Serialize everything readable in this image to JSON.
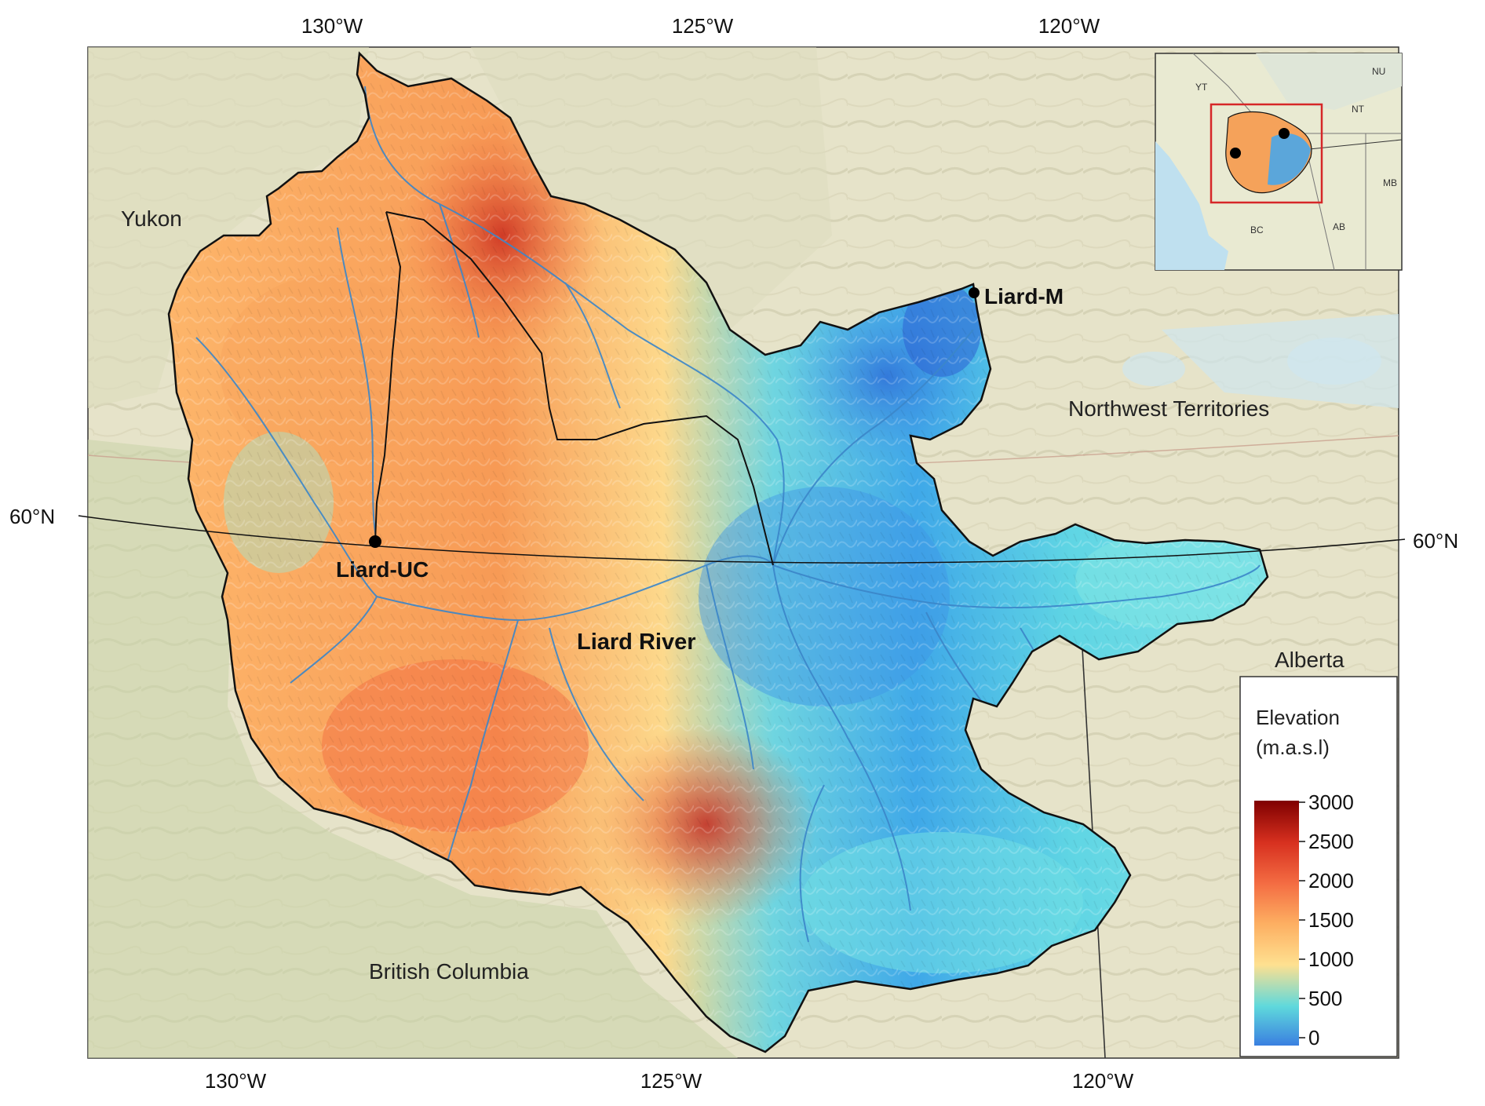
{
  "map": {
    "longitude_labels_top": [
      "130°W",
      "125°W",
      "120°W"
    ],
    "longitude_labels_bottom": [
      "130°W",
      "125°W",
      "120°W"
    ],
    "latitude_label_left": "60°N",
    "latitude_label_right": "60°N",
    "regions": {
      "yukon": "Yukon",
      "northwest_territories": "Northwest Territories",
      "alberta": "Alberta",
      "british_columbia": "British Columbia"
    },
    "stations": {
      "liard_m": "Liard-M",
      "liard_uc": "Liard-UC"
    },
    "river_label": "Liard River"
  },
  "legend": {
    "title_line1": "Elevation",
    "title_line2": "(m.a.s.l)",
    "ticks": [
      "3000",
      "2500",
      "2000",
      "1500",
      "1000",
      "500",
      "0"
    ],
    "colors": [
      "#7f0000",
      "#d7301f",
      "#f46d43",
      "#fdae61",
      "#fee090",
      "#5fd9dc",
      "#3a7fe0"
    ]
  },
  "inset": {
    "labels": {
      "yt": "YT",
      "nu": "NU",
      "nt": "NT",
      "mb": "MB",
      "bc": "BC",
      "ab": "AB"
    },
    "highlight_color": "#d62728"
  }
}
